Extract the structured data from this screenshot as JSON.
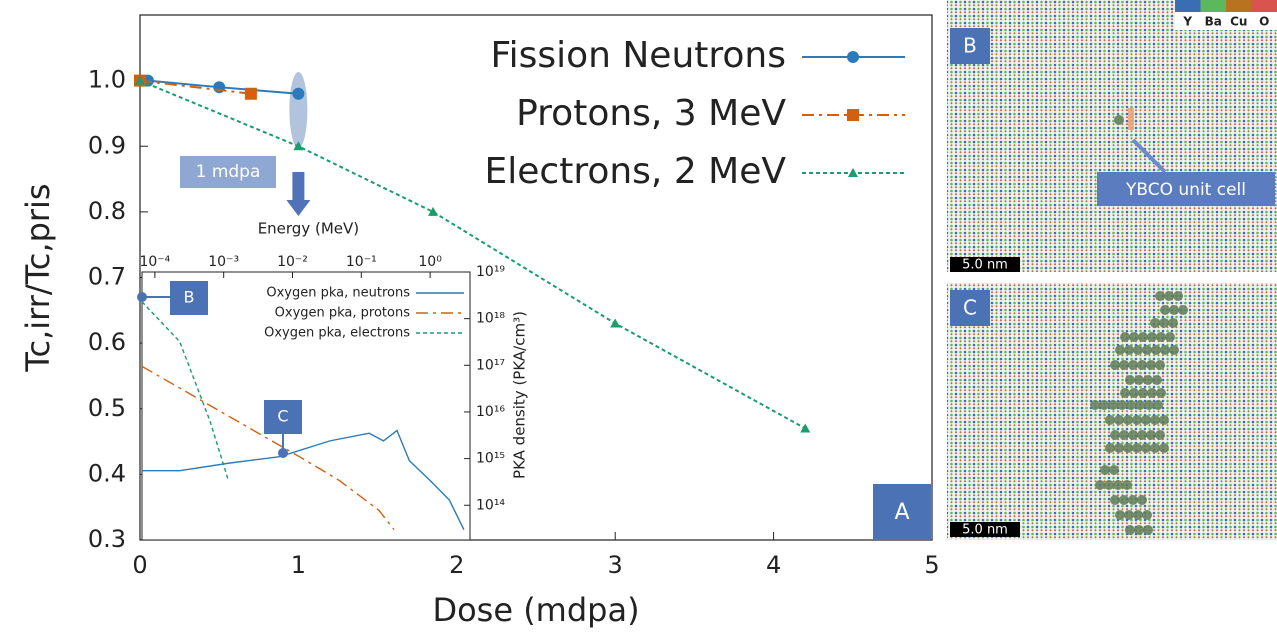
{
  "chart_data": [
    {
      "type": "line",
      "x_label": "Dose (mdpa)",
      "y_label": "Tc,irr/Tc,pris",
      "xlim": [
        0,
        5
      ],
      "ylim": [
        0.3,
        1.1
      ],
      "xticks": [
        0,
        1,
        2,
        3,
        4,
        5
      ],
      "yticks": [
        0.3,
        0.4,
        0.5,
        0.6,
        0.7,
        0.8,
        0.9,
        {
          "value": 1,
          "label": "1.0"
        }
      ],
      "legend": "upper right",
      "series": [
        {
          "name": "Fission Neutrons",
          "color": "#2b7bba",
          "marker": "circle",
          "line_style": "solid",
          "x": [
            0,
            0.05,
            0.5,
            1
          ],
          "values": [
            1.0,
            1.0,
            0.99,
            0.98
          ]
        },
        {
          "name": "Protons, 3 MeV",
          "color": "#d2600f",
          "marker": "square",
          "line_style": "dashdot",
          "x": [
            0,
            0.7
          ],
          "values": [
            1.0,
            0.98
          ]
        },
        {
          "name": "Electrons, 2 MeV",
          "color": "#1a9c6c",
          "marker": "triangle",
          "line_style": "dotted",
          "x": [
            0,
            1,
            1.85,
            3,
            4.2
          ],
          "values": [
            1.0,
            0.9,
            0.8,
            0.63,
            0.47
          ]
        }
      ],
      "annotations": [
        "1 mdpa",
        "Energy (MeV)",
        "A"
      ]
    },
    {
      "type": "line",
      "log_x": true,
      "log_y": true,
      "y_label": "PKA density (PKA/cm³)",
      "xlim": [
        6.5e-05,
        3.8
      ],
      "ylim": [
        18000000000000.0,
        1e+19
      ],
      "xticks": [
        {
          "value": 0.0001,
          "label": "10⁻⁴"
        },
        {
          "value": 0.001,
          "label": "10⁻³"
        },
        {
          "value": 0.01,
          "label": "10⁻²"
        },
        {
          "value": 0.1,
          "label": "10⁻¹"
        },
        {
          "value": 1,
          "label": "10⁰"
        }
      ],
      "yticks": [
        {
          "value": 100000000000000.0,
          "label": "10¹⁴"
        },
        {
          "value": 1000000000000000.0,
          "label": "10¹⁵"
        },
        {
          "value": 1e+16,
          "label": "10¹⁶"
        },
        {
          "value": 1e+17,
          "label": "10¹⁷"
        },
        {
          "value": 1e+18,
          "label": "10¹⁸"
        },
        {
          "value": 1e+19,
          "label": "10¹⁹"
        }
      ],
      "legend": "upper right",
      "series": [
        {
          "name": "Oxygen pka, neutrons",
          "color": "#2b7bba",
          "line_style": "solid",
          "x": [
            6.5e-05,
            0.00023,
            0.0012,
            0.0065,
            0.035,
            0.13,
            0.21,
            0.33,
            0.5,
            1.0,
            1.9,
            3.1
          ],
          "values": [
            550000000000000.0,
            550000000000000.0,
            800000000000000.0,
            1100000000000000.0,
            2400000000000000.0,
            3500000000000000.0,
            2400000000000000.0,
            4000000000000000.0,
            900000000000000.0,
            340000000000000.0,
            130000000000000.0,
            30000000000000.0
          ]
        },
        {
          "name": "Oxygen pka, protons",
          "color": "#d2600f",
          "line_style": "dashdot",
          "x": [
            6.5e-05,
            0.00087,
            0.0126,
            0.048,
            0.18,
            0.3
          ],
          "values": [
            9.5e+16,
            1.05e+16,
            1100000000000000.0,
            340000000000000.0,
            78000000000000.0,
            30000000000000.0
          ]
        },
        {
          "name": "Oxygen pka, electrons",
          "color": "#1a9c6c",
          "line_style": "dotted",
          "x": [
            6.5e-05,
            0.00023,
            0.00063,
            0.00115
          ],
          "values": [
            2.3e+18,
            3.2e+17,
            6500000000000000.0,
            370000000000000.0
          ]
        }
      ],
      "annotations": [
        "B",
        "C"
      ]
    }
  ],
  "panels": [
    {
      "label": "B",
      "scale_bar": "5.0 nm",
      "annotation": "YBCO unit cell",
      "legend": [
        {
          "name": "Y",
          "color": "#3b6db3"
        },
        {
          "name": "Ba",
          "color": "#5cb85c"
        },
        {
          "name": "Cu",
          "color": "#b8731e"
        },
        {
          "name": "O",
          "color": "#d9534f"
        }
      ]
    },
    {
      "label": "C",
      "scale_bar": "5.0 nm"
    }
  ]
}
